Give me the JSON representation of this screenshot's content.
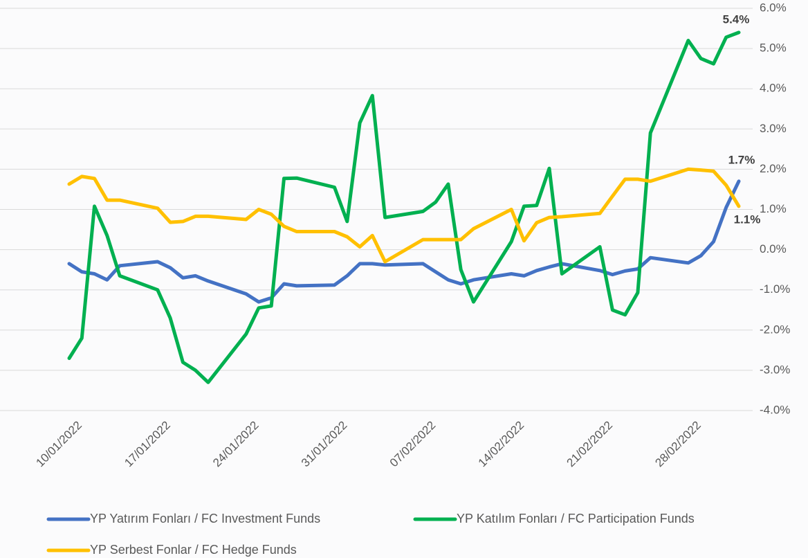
{
  "chart_data": {
    "type": "line",
    "x": [
      "10/01/2022",
      "11/01/2022",
      "12/01/2022",
      "13/01/2022",
      "14/01/2022",
      "17/01/2022",
      "18/01/2022",
      "19/01/2022",
      "20/01/2022",
      "21/01/2022",
      "24/01/2022",
      "25/01/2022",
      "26/01/2022",
      "27/01/2022",
      "28/01/2022",
      "31/01/2022",
      "01/02/2022",
      "02/02/2022",
      "03/02/2022",
      "04/02/2022",
      "07/02/2022",
      "08/02/2022",
      "09/02/2022",
      "10/02/2022",
      "11/02/2022",
      "14/02/2022",
      "15/02/2022",
      "16/02/2022",
      "17/02/2022",
      "18/02/2022",
      "21/02/2022",
      "22/02/2022",
      "23/02/2022",
      "24/02/2022",
      "25/02/2022",
      "28/02/2022",
      "01/03/2022",
      "02/03/2022",
      "03/03/2022",
      "04/03/2022"
    ],
    "xlim": [
      "10/01/2022",
      "04/03/2022"
    ],
    "xticks": [
      "10/01/2022",
      "17/01/2022",
      "24/01/2022",
      "31/01/2022",
      "07/02/2022",
      "14/02/2022",
      "21/02/2022",
      "28/02/2022"
    ],
    "ylim": [
      -4,
      6
    ],
    "yticks": [
      {
        "value": -4,
        "label": "-4.0%"
      },
      {
        "value": -3,
        "label": "-3.0%"
      },
      {
        "value": -2,
        "label": "-2.0%"
      },
      {
        "value": -1,
        "label": "-1.0%"
      },
      {
        "value": 0,
        "label": "0.0%"
      },
      {
        "value": 1,
        "label": "1.0%"
      },
      {
        "value": 2,
        "label": "2.0%"
      },
      {
        "value": 3,
        "label": "3.0%"
      },
      {
        "value": 4,
        "label": "4.0%"
      },
      {
        "value": 5,
        "label": "5.0%"
      },
      {
        "value": 6,
        "label": "6.0%"
      }
    ],
    "grid": true,
    "series": [
      {
        "name": "YP Yatırım Fonları / FC Investment Funds",
        "color": "#4472c4",
        "values": [
          -0.35,
          -0.55,
          -0.6,
          -0.75,
          -0.4,
          -0.3,
          -0.45,
          -0.7,
          -0.65,
          -0.78,
          -1.1,
          -1.3,
          -1.2,
          -0.85,
          -0.9,
          -0.88,
          -0.65,
          -0.35,
          -0.35,
          -0.38,
          -0.35,
          -0.55,
          -0.75,
          -0.85,
          -0.75,
          -0.6,
          -0.65,
          -0.52,
          -0.43,
          -0.35,
          -0.52,
          -0.62,
          -0.53,
          -0.48,
          -0.2,
          -0.33,
          -0.15,
          0.2,
          1.05,
          1.7
        ],
        "value_labels": [
          null,
          null,
          null,
          null,
          null,
          null,
          null,
          null,
          null,
          null,
          null,
          null,
          null,
          null,
          null,
          null,
          null,
          null,
          null,
          null,
          null,
          null,
          null,
          null,
          null,
          null,
          null,
          null,
          null,
          null,
          null,
          null,
          null,
          null,
          null,
          null,
          null,
          null,
          null,
          "1.7%"
        ]
      },
      {
        "name": "YP Katılım Fonları / FC Participation Funds",
        "color": "#00b050",
        "values": [
          -2.7,
          -2.2,
          1.08,
          0.35,
          -0.65,
          -1.0,
          -1.7,
          -2.8,
          -3.0,
          -3.3,
          -2.1,
          -1.45,
          -1.4,
          1.77,
          1.78,
          1.55,
          0.7,
          3.15,
          3.83,
          0.8,
          0.95,
          1.18,
          1.63,
          -0.5,
          -1.3,
          0.2,
          1.08,
          1.1,
          2.02,
          -0.6,
          0.07,
          -1.5,
          -1.62,
          -1.07,
          2.9,
          5.2,
          4.75,
          4.62,
          5.28,
          5.4
        ],
        "value_labels": [
          null,
          null,
          null,
          null,
          null,
          null,
          null,
          null,
          null,
          null,
          null,
          null,
          null,
          null,
          null,
          null,
          null,
          null,
          null,
          null,
          null,
          null,
          null,
          null,
          null,
          null,
          null,
          null,
          null,
          null,
          null,
          null,
          null,
          null,
          null,
          null,
          null,
          null,
          null,
          "5.4%"
        ]
      },
      {
        "name": "YP Serbest Fonlar / FC Hedge Funds",
        "color": "#ffc000",
        "values": [
          1.63,
          1.82,
          1.77,
          1.23,
          1.23,
          1.03,
          0.68,
          0.7,
          0.83,
          0.83,
          0.75,
          1.0,
          0.88,
          0.58,
          0.45,
          0.45,
          0.32,
          0.07,
          0.35,
          -0.3,
          0.25,
          0.25,
          0.25,
          0.25,
          0.52,
          1.0,
          0.22,
          0.67,
          0.8,
          0.82,
          0.9,
          1.33,
          1.75,
          1.75,
          1.7,
          2.0,
          1.98,
          1.95,
          1.6,
          1.08
        ],
        "value_labels": [
          null,
          null,
          null,
          null,
          null,
          null,
          null,
          null,
          null,
          null,
          null,
          null,
          null,
          null,
          null,
          null,
          null,
          null,
          null,
          null,
          null,
          null,
          null,
          null,
          null,
          null,
          null,
          null,
          null,
          null,
          null,
          null,
          null,
          null,
          null,
          null,
          null,
          null,
          null,
          "1.1%"
        ]
      }
    ]
  }
}
